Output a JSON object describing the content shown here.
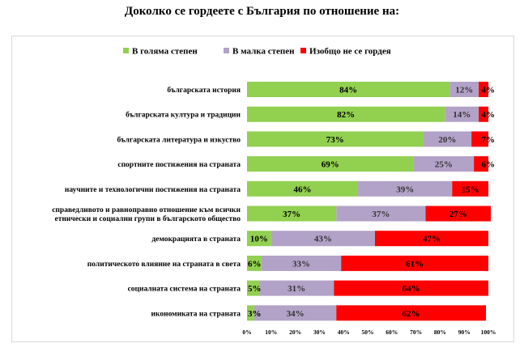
{
  "chart_data": {
    "type": "bar",
    "orientation": "horizontal",
    "stacked": true,
    "title": "Доколко се гордеете с България по отношение на:",
    "categories": [
      [
        "българската история"
      ],
      [
        "българската култура и традиции"
      ],
      [
        "българската литература и изкуство"
      ],
      [
        "спортните постижения на страната"
      ],
      [
        "научните и технологични постижения на страната"
      ],
      [
        "справедливото и равноправно отношение към всички",
        "етнически и социални групи в българското общество"
      ],
      [
        "демокрацията в страната"
      ],
      [
        "политическото влияние на страната в света"
      ],
      [
        "социалната система на страната"
      ],
      [
        "икономиката на страната"
      ]
    ],
    "series": [
      {
        "name": "В голяма степен",
        "color": "#92d050",
        "label_color": "#000000",
        "values": [
          84,
          82,
          73,
          69,
          46,
          37,
          10,
          6,
          5,
          3
        ]
      },
      {
        "name": "В малка степен",
        "color": "#b2a2c7",
        "label_color": "#333333",
        "values": [
          12,
          14,
          20,
          25,
          39,
          37,
          43,
          33,
          31,
          34
        ]
      },
      {
        "name": "Изобщо не се гордея",
        "color": "#ff0000",
        "label_color": "#000000",
        "values": [
          4,
          4,
          7,
          6,
          15,
          27,
          47,
          61,
          64,
          62
        ]
      }
    ],
    "value_suffix": "%",
    "xlim": [
      0,
      100
    ],
    "xticks": [
      "0%",
      "10%",
      "20%",
      "30%",
      "40%",
      "50%",
      "60%",
      "70%",
      "80%",
      "90%",
      "100%"
    ],
    "legend_position": "top",
    "grid": false
  }
}
